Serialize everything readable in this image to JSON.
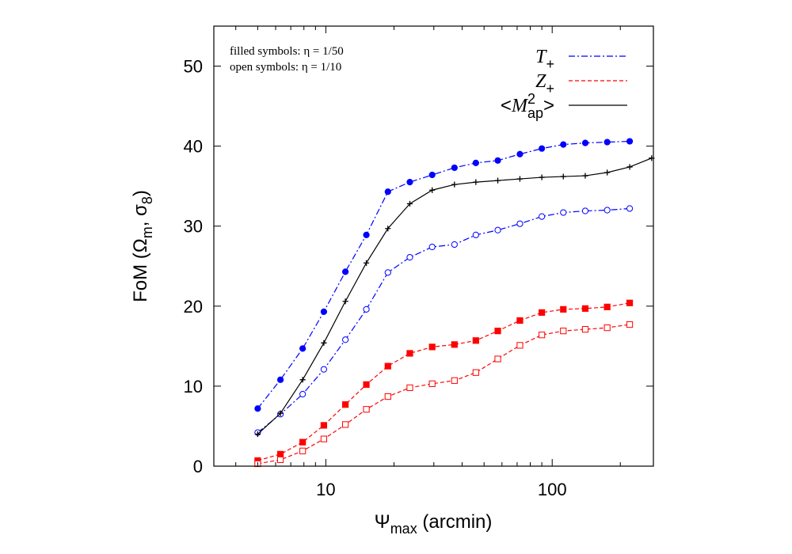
{
  "chart_data": {
    "type": "line",
    "xscale": "log",
    "xlim": [
      3.2,
      280
    ],
    "ylim": [
      0,
      55
    ],
    "xticks": [
      10,
      100
    ],
    "xtick_labels": [
      "10",
      "100"
    ],
    "yticks": [
      0,
      10,
      20,
      30,
      40,
      50
    ],
    "ytick_labels": [
      "0",
      "10",
      "20",
      "30",
      "40",
      "50"
    ],
    "xlabel": {
      "main": "Ψ",
      "sub": "max",
      "rest": " (arcmin)"
    },
    "ylabel": {
      "pre": "FoM (Ω",
      "sub1": "m",
      "mid": ", σ",
      "sub2": "8",
      "post": ")"
    },
    "notes": [
      "filled symbols: η = 1/50",
      "open symbols:  η = 1/10"
    ],
    "legend_position": "top-right",
    "legend": [
      {
        "base": "T",
        "sub": "+",
        "sup": "",
        "pre": "",
        "post": "",
        "color": "#0000ff",
        "dash": "dashdot"
      },
      {
        "base": "Z",
        "sub": "+",
        "sup": "",
        "pre": "",
        "post": "",
        "color": "#ff0000",
        "dash": "dashed"
      },
      {
        "base": "M",
        "sub": "ap",
        "sup": "2",
        "pre": "<",
        "post": ">",
        "color": "#000000",
        "dash": "solid"
      }
    ],
    "grid": false,
    "series": [
      {
        "marker": "filled-circle",
        "color": "#0000ff",
        "dash": "dashdot",
        "x": [
          5.0,
          6.3,
          7.9,
          9.8,
          12.2,
          15.1,
          18.8,
          23.5,
          29.5,
          37.0,
          46.0,
          57.5,
          72.0,
          90.0,
          112.0,
          140.0,
          175.0,
          220.0
        ],
        "y": [
          7.2,
          10.8,
          14.7,
          19.3,
          24.3,
          28.9,
          34.3,
          35.5,
          36.4,
          37.3,
          37.9,
          38.2,
          39.0,
          39.7,
          40.2,
          40.4,
          40.5,
          40.6
        ]
      },
      {
        "marker": "open-circle",
        "color": "#0000ff",
        "dash": "dashdot",
        "x": [
          5.0,
          6.3,
          7.9,
          9.8,
          12.2,
          15.1,
          18.8,
          23.5,
          29.5,
          37.0,
          46.0,
          57.5,
          72.0,
          90.0,
          112.0,
          140.0,
          175.0,
          220.0
        ],
        "y": [
          4.2,
          6.5,
          9.0,
          12.1,
          15.8,
          19.6,
          24.2,
          26.1,
          27.4,
          27.7,
          28.9,
          29.5,
          30.3,
          31.2,
          31.7,
          31.9,
          32.0,
          32.2
        ]
      },
      {
        "marker": "filled-square",
        "color": "#ff0000",
        "dash": "dashed",
        "x": [
          5.0,
          6.3,
          7.9,
          9.8,
          12.2,
          15.1,
          18.8,
          23.5,
          29.5,
          37.0,
          46.0,
          57.5,
          72.0,
          90.0,
          112.0,
          140.0,
          175.0,
          220.0
        ],
        "y": [
          0.7,
          1.5,
          3.0,
          5.1,
          7.7,
          10.2,
          12.5,
          14.1,
          14.9,
          15.2,
          15.7,
          16.9,
          18.2,
          19.2,
          19.6,
          19.7,
          19.9,
          20.4
        ]
      },
      {
        "marker": "open-square",
        "color": "#ff0000",
        "dash": "dashed",
        "x": [
          5.0,
          6.3,
          7.9,
          9.8,
          12.2,
          15.1,
          18.8,
          23.5,
          29.5,
          37.0,
          46.0,
          57.5,
          72.0,
          90.0,
          112.0,
          140.0,
          175.0,
          220.0
        ],
        "y": [
          0.3,
          0.8,
          1.9,
          3.4,
          5.2,
          7.1,
          8.7,
          9.8,
          10.3,
          10.7,
          11.7,
          13.4,
          15.1,
          16.4,
          16.9,
          17.1,
          17.3,
          17.7
        ]
      },
      {
        "marker": "plus",
        "color": "#000000",
        "dash": "solid",
        "x": [
          5.0,
          6.3,
          7.9,
          9.8,
          12.2,
          15.1,
          18.8,
          23.5,
          29.5,
          37.0,
          46.0,
          57.5,
          72.0,
          90.0,
          112.0,
          140.0,
          175.0,
          220.0,
          275.0
        ],
        "y": [
          4.0,
          6.6,
          10.8,
          15.4,
          20.6,
          25.4,
          29.7,
          32.8,
          34.5,
          35.2,
          35.5,
          35.7,
          35.9,
          36.1,
          36.2,
          36.3,
          36.7,
          37.4,
          38.5
        ]
      }
    ]
  }
}
